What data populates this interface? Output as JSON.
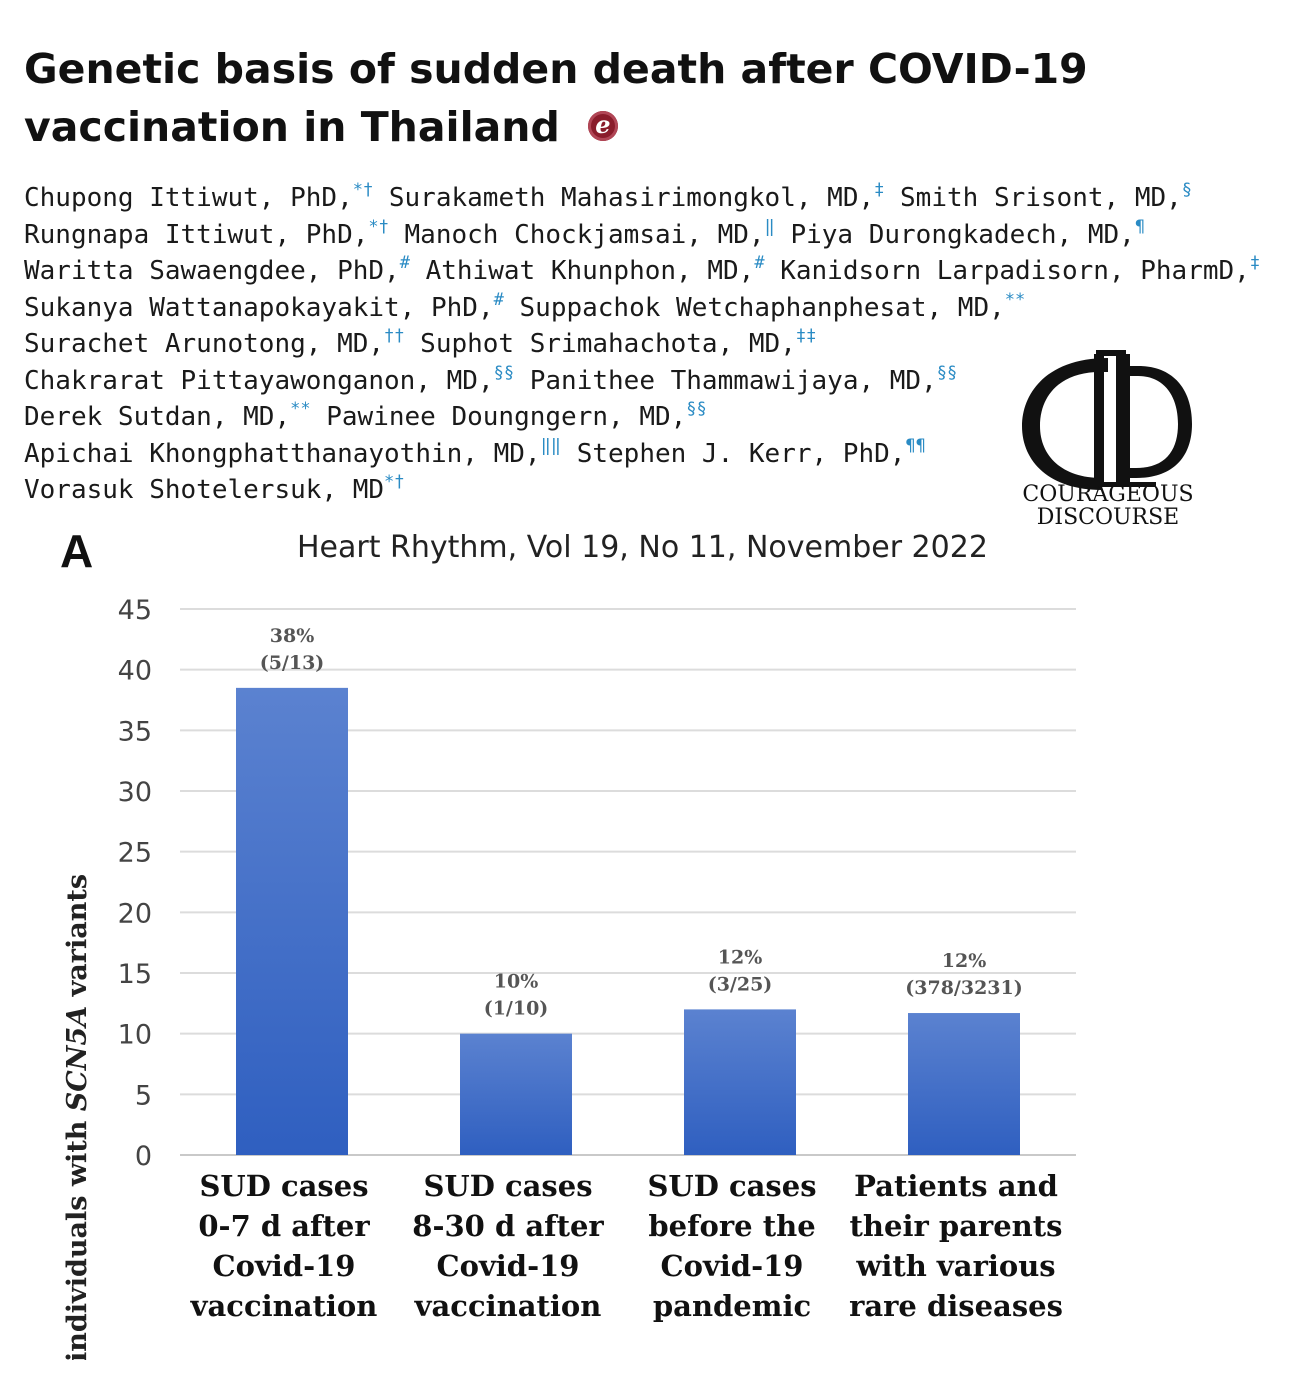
{
  "article": {
    "title_line1": "Genetic basis of sudden death after COVID-19",
    "title_line2": "vaccination in Thailand",
    "badge": "e",
    "authors": [
      [
        [
          "Chupong Ittiwut, PhD,",
          "*†"
        ],
        [
          " Surakameth Mahasirimongkol, MD,",
          "‡"
        ],
        [
          " Smith Srisont, MD,",
          "§"
        ]
      ],
      [
        [
          "Rungnapa Ittiwut, PhD,",
          "*†"
        ],
        [
          " Manoch Chockjamsai, MD,",
          "‖"
        ],
        [
          " Piya Durongkadech, MD,",
          "¶"
        ]
      ],
      [
        [
          "Waritta Sawaengdee, PhD,",
          "#"
        ],
        [
          " Athiwat Khunphon, MD,",
          "#"
        ],
        [
          " Kanidsorn Larpadisorn, PharmD,",
          "‡"
        ]
      ],
      [
        [
          "Sukanya Wattanapokayakit, PhD,",
          "#"
        ],
        [
          " Suppachok Wetchaphanphesat, MD,",
          "**"
        ]
      ],
      [
        [
          "Surachet Arunotong, MD,",
          "††"
        ],
        [
          " Suphot Srimahachota, MD,",
          "‡‡"
        ]
      ],
      [
        [
          "Chakrarat Pittayawonganon, MD,",
          "§§"
        ],
        [
          " Panithee Thammawijaya, MD,",
          "§§"
        ]
      ],
      [
        [
          "Derek Sutdan, MD,",
          "**"
        ],
        [
          " Pawinee Doungngern, MD,",
          "§§"
        ]
      ],
      [
        [
          "Apichai Khongphatthanayothin, MD,",
          "‖‖"
        ],
        [
          " Stephen J. Kerr, PhD,",
          "¶¶"
        ]
      ],
      [
        [
          "Vorasuk Shotelersuk, MD",
          "*†"
        ]
      ]
    ],
    "journal": "Heart Rhythm, Vol 19, No 11, November 2022"
  },
  "logo": {
    "line1": "COURAGEOUS",
    "line2": "DISCOURSE"
  },
  "panel_label": "A",
  "chart_data": {
    "type": "bar",
    "ylabel_prefix": "% of individuals with ",
    "ylabel_gene": "SCN5A",
    "ylabel_suffix": " variants",
    "ylim": [
      0,
      45
    ],
    "yticks": [
      0,
      5,
      10,
      15,
      20,
      25,
      30,
      35,
      40,
      45
    ],
    "grid": true,
    "bar_color_top": "#5b82d0",
    "bar_color_bottom": "#2f5fc0",
    "categories": [
      [
        "SUD cases",
        "0-7 d after",
        "Covid-19",
        "vaccination"
      ],
      [
        "SUD cases",
        "8-30 d after",
        "Covid-19",
        "vaccination"
      ],
      [
        "SUD cases",
        "before the",
        "Covid-19",
        "pandemic"
      ],
      [
        "Patients and",
        "their parents",
        "with various",
        "rare diseases"
      ]
    ],
    "values": [
      38.5,
      10,
      12,
      11.7
    ],
    "labels": [
      [
        "38%",
        "(5/13)"
      ],
      [
        "10%",
        "(1/10)"
      ],
      [
        "12%",
        "(3/25)"
      ],
      [
        "12%",
        "(378/3231)"
      ]
    ]
  }
}
